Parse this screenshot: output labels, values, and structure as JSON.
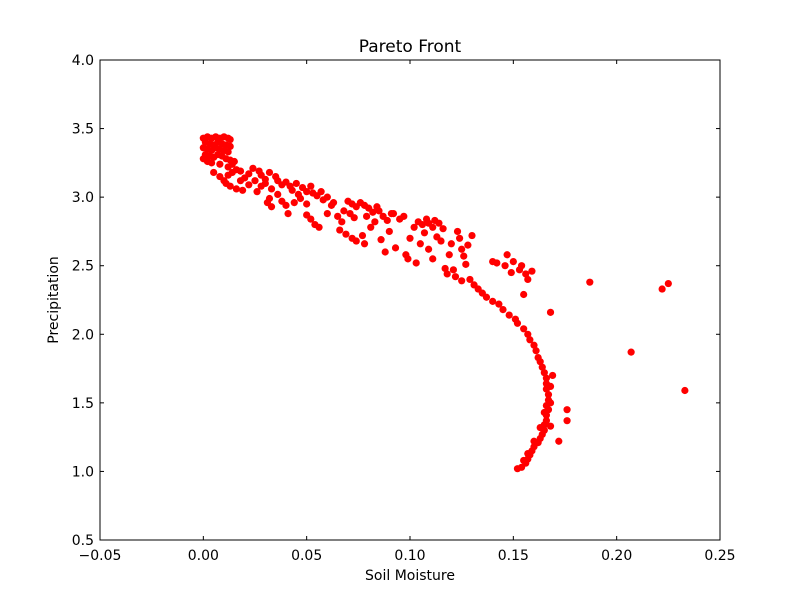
{
  "chart_data": {
    "type": "scatter",
    "title": "Pareto Front",
    "xlabel": "Soil Moisture",
    "ylabel": "Precipitation",
    "xlim": [
      -0.05,
      0.25
    ],
    "ylim": [
      0.5,
      4.0
    ],
    "xticks": [
      -0.05,
      0.0,
      0.05,
      0.1,
      0.15,
      0.2,
      0.25
    ],
    "xtick_labels": [
      "−0.05",
      "0.00",
      "0.05",
      "0.10",
      "0.15",
      "0.20",
      "0.25"
    ],
    "yticks": [
      0.5,
      1.0,
      1.5,
      2.0,
      2.5,
      3.0,
      3.5,
      4.0
    ],
    "ytick_labels": [
      "0.5",
      "1.0",
      "1.5",
      "2.0",
      "2.5",
      "3.0",
      "3.5",
      "4.0"
    ],
    "grid": false,
    "legend": "none",
    "marker_color": "#ff0000",
    "series": [
      {
        "points": [
          [
            0.0,
            3.43
          ],
          [
            0.002,
            3.44
          ],
          [
            0.004,
            3.43
          ],
          [
            0.006,
            3.44
          ],
          [
            0.008,
            3.43
          ],
          [
            0.01,
            3.44
          ],
          [
            0.012,
            3.43
          ],
          [
            0.013,
            3.42
          ],
          [
            0.001,
            3.4
          ],
          [
            0.003,
            3.39
          ],
          [
            0.005,
            3.38
          ],
          [
            0.007,
            3.4
          ],
          [
            0.009,
            3.39
          ],
          [
            0.011,
            3.38
          ],
          [
            0.013,
            3.37
          ],
          [
            0.0,
            3.36
          ],
          [
            0.002,
            3.35
          ],
          [
            0.004,
            3.34
          ],
          [
            0.006,
            3.36
          ],
          [
            0.008,
            3.35
          ],
          [
            0.01,
            3.34
          ],
          [
            0.012,
            3.33
          ],
          [
            0.001,
            3.31
          ],
          [
            0.003,
            3.3
          ],
          [
            0.005,
            3.29
          ],
          [
            0.007,
            3.31
          ],
          [
            0.009,
            3.3
          ],
          [
            0.011,
            3.28
          ],
          [
            0.013,
            3.27
          ],
          [
            0.0,
            3.28
          ],
          [
            0.002,
            3.26
          ],
          [
            0.004,
            3.25
          ],
          [
            0.008,
            3.24
          ],
          [
            0.012,
            3.22
          ],
          [
            0.014,
            3.24
          ],
          [
            0.015,
            3.26
          ],
          [
            0.005,
            3.18
          ],
          [
            0.008,
            3.15
          ],
          [
            0.01,
            3.12
          ],
          [
            0.012,
            3.16
          ],
          [
            0.014,
            3.18
          ],
          [
            0.016,
            3.2
          ],
          [
            0.018,
            3.19
          ],
          [
            0.011,
            3.1
          ],
          [
            0.013,
            3.08
          ],
          [
            0.016,
            3.06
          ],
          [
            0.018,
            3.12
          ],
          [
            0.02,
            3.14
          ],
          [
            0.022,
            3.17
          ],
          [
            0.024,
            3.21
          ],
          [
            0.019,
            3.05
          ],
          [
            0.022,
            3.09
          ],
          [
            0.025,
            3.12
          ],
          [
            0.027,
            3.19
          ],
          [
            0.028,
            3.16
          ],
          [
            0.03,
            3.13
          ],
          [
            0.032,
            3.18
          ],
          [
            0.026,
            3.04
          ],
          [
            0.028,
            3.08
          ],
          [
            0.03,
            3.1
          ],
          [
            0.033,
            3.06
          ],
          [
            0.035,
            3.15
          ],
          [
            0.036,
            3.12
          ],
          [
            0.038,
            3.09
          ],
          [
            0.031,
            2.96
          ],
          [
            0.032,
            2.99
          ],
          [
            0.033,
            2.93
          ],
          [
            0.036,
            3.02
          ],
          [
            0.038,
            2.97
          ],
          [
            0.04,
            3.11
          ],
          [
            0.042,
            3.08
          ],
          [
            0.04,
            2.94
          ],
          [
            0.043,
            3.05
          ],
          [
            0.045,
            3.1
          ],
          [
            0.046,
            3.02
          ],
          [
            0.048,
            3.07
          ],
          [
            0.05,
            3.04
          ],
          [
            0.052,
            3.08
          ],
          [
            0.041,
            2.88
          ],
          [
            0.044,
            2.96
          ],
          [
            0.047,
            2.99
          ],
          [
            0.05,
            2.95
          ],
          [
            0.053,
            3.03
          ],
          [
            0.055,
            3.01
          ],
          [
            0.057,
            3.04
          ],
          [
            0.05,
            2.87
          ],
          [
            0.052,
            2.84
          ],
          [
            0.054,
            2.8
          ],
          [
            0.056,
            2.78
          ],
          [
            0.058,
            2.98
          ],
          [
            0.06,
            3.0
          ],
          [
            0.062,
            2.94
          ],
          [
            0.06,
            2.88
          ],
          [
            0.063,
            2.96
          ],
          [
            0.065,
            2.86
          ],
          [
            0.067,
            2.82
          ],
          [
            0.068,
            2.9
          ],
          [
            0.07,
            2.97
          ],
          [
            0.072,
            2.95
          ],
          [
            0.066,
            2.76
          ],
          [
            0.069,
            2.73
          ],
          [
            0.071,
            2.88
          ],
          [
            0.073,
            2.85
          ],
          [
            0.074,
            2.93
          ],
          [
            0.076,
            2.96
          ],
          [
            0.078,
            2.94
          ],
          [
            0.072,
            2.7
          ],
          [
            0.074,
            2.68
          ],
          [
            0.077,
            2.72
          ],
          [
            0.079,
            2.86
          ],
          [
            0.08,
            2.92
          ],
          [
            0.082,
            2.89
          ],
          [
            0.084,
            2.93
          ],
          [
            0.078,
            2.66
          ],
          [
            0.081,
            2.78
          ],
          [
            0.083,
            2.82
          ],
          [
            0.085,
            2.9
          ],
          [
            0.087,
            2.86
          ],
          [
            0.089,
            2.83
          ],
          [
            0.091,
            2.88
          ],
          [
            0.086,
            2.69
          ],
          [
            0.088,
            2.6
          ],
          [
            0.09,
            2.75
          ],
          [
            0.092,
            2.88
          ],
          [
            0.093,
            2.63
          ],
          [
            0.095,
            2.84
          ],
          [
            0.097,
            2.86
          ],
          [
            0.098,
            2.58
          ],
          [
            0.099,
            2.55
          ],
          [
            0.1,
            2.7
          ],
          [
            0.102,
            2.78
          ],
          [
            0.104,
            2.82
          ],
          [
            0.106,
            2.8
          ],
          [
            0.108,
            2.84
          ],
          [
            0.103,
            2.52
          ],
          [
            0.105,
            2.66
          ],
          [
            0.107,
            2.74
          ],
          [
            0.109,
            2.81
          ],
          [
            0.111,
            2.78
          ],
          [
            0.112,
            2.83
          ],
          [
            0.114,
            2.81
          ],
          [
            0.109,
            2.62
          ],
          [
            0.111,
            2.55
          ],
          [
            0.113,
            2.71
          ],
          [
            0.115,
            2.68
          ],
          [
            0.116,
            2.77
          ],
          [
            0.117,
            2.48
          ],
          [
            0.118,
            2.44
          ],
          [
            0.119,
            2.58
          ],
          [
            0.12,
            2.66
          ],
          [
            0.121,
            2.47
          ],
          [
            0.122,
            2.42
          ],
          [
            0.123,
            2.75
          ],
          [
            0.124,
            2.7
          ],
          [
            0.125,
            2.39
          ],
          [
            0.125,
            2.62
          ],
          [
            0.126,
            2.57
          ],
          [
            0.127,
            2.51
          ],
          [
            0.128,
            2.65
          ],
          [
            0.129,
            2.4
          ],
          [
            0.13,
            2.72
          ],
          [
            0.131,
            2.36
          ],
          [
            0.133,
            2.33
          ],
          [
            0.135,
            2.3
          ],
          [
            0.137,
            2.27
          ],
          [
            0.14,
            2.24
          ],
          [
            0.14,
            2.53
          ],
          [
            0.142,
            2.52
          ],
          [
            0.143,
            2.22
          ],
          [
            0.145,
            2.18
          ],
          [
            0.146,
            2.5
          ],
          [
            0.147,
            2.58
          ],
          [
            0.148,
            2.14
          ],
          [
            0.149,
            2.45
          ],
          [
            0.15,
            2.53
          ],
          [
            0.151,
            2.11
          ],
          [
            0.152,
            2.08
          ],
          [
            0.153,
            2.47
          ],
          [
            0.154,
            2.5
          ],
          [
            0.155,
            2.04
          ],
          [
            0.155,
            2.29
          ],
          [
            0.156,
            2.44
          ],
          [
            0.157,
            2.0
          ],
          [
            0.157,
            2.4
          ],
          [
            0.158,
            1.96
          ],
          [
            0.159,
            2.46
          ],
          [
            0.16,
            1.92
          ],
          [
            0.161,
            1.88
          ],
          [
            0.162,
            1.83
          ],
          [
            0.163,
            1.8
          ],
          [
            0.164,
            1.76
          ],
          [
            0.165,
            1.72
          ],
          [
            0.166,
            1.68
          ],
          [
            0.166,
            1.64
          ],
          [
            0.166,
            1.6
          ],
          [
            0.167,
            1.56
          ],
          [
            0.167,
            1.52
          ],
          [
            0.166,
            1.48
          ],
          [
            0.167,
            1.45
          ],
          [
            0.166,
            1.41
          ],
          [
            0.166,
            1.37
          ],
          [
            0.165,
            1.34
          ],
          [
            0.165,
            1.3
          ],
          [
            0.164,
            1.27
          ],
          [
            0.163,
            1.24
          ],
          [
            0.162,
            1.21
          ],
          [
            0.16,
            1.18
          ],
          [
            0.159,
            1.15
          ],
          [
            0.158,
            1.12
          ],
          [
            0.157,
            1.09
          ],
          [
            0.156,
            1.06
          ],
          [
            0.154,
            1.03
          ],
          [
            0.152,
            1.02
          ],
          [
            0.155,
            1.08
          ],
          [
            0.157,
            1.13
          ],
          [
            0.16,
            1.22
          ],
          [
            0.163,
            1.32
          ],
          [
            0.165,
            1.43
          ],
          [
            0.168,
            1.33
          ],
          [
            0.168,
            1.5
          ],
          [
            0.169,
            1.7
          ],
          [
            0.168,
            1.62
          ],
          [
            0.172,
            1.22
          ],
          [
            0.176,
            1.45
          ],
          [
            0.176,
            1.37
          ],
          [
            0.168,
            2.16
          ],
          [
            0.187,
            2.38
          ],
          [
            0.207,
            1.87
          ],
          [
            0.222,
            2.33
          ],
          [
            0.225,
            2.37
          ],
          [
            0.233,
            1.59
          ]
        ]
      }
    ]
  }
}
